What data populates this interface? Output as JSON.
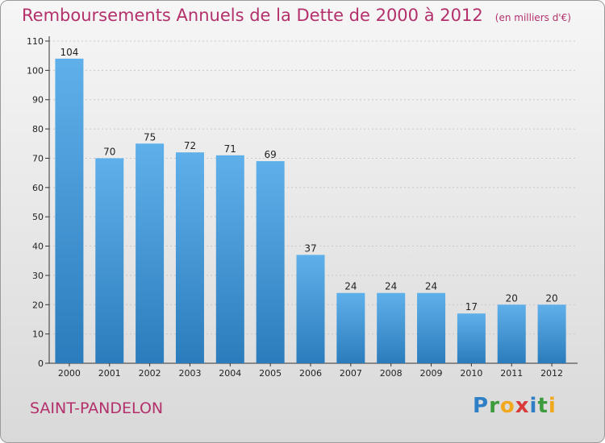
{
  "colors": {
    "title": "#b3306b",
    "bar_top": "#5fb0ea",
    "bar_bottom": "#2b7cbc"
  },
  "chart_data": {
    "type": "bar",
    "title": "Remboursements Annuels de la Dette de 2000 à 2012",
    "subtitle": "(en milliers d'€)",
    "categories": [
      "2000",
      "2001",
      "2002",
      "2003",
      "2004",
      "2005",
      "2006",
      "2007",
      "2008",
      "2009",
      "2010",
      "2011",
      "2012"
    ],
    "values": [
      104,
      70,
      75,
      72,
      71,
      69,
      37,
      24,
      24,
      24,
      17,
      20,
      20
    ],
    "yticks": [
      0,
      10,
      20,
      30,
      40,
      50,
      60,
      70,
      80,
      90,
      100,
      110
    ],
    "ylim": [
      0,
      110
    ],
    "xlabel": "",
    "ylabel": "",
    "grid": true
  },
  "footer": {
    "commune": "SAINT-PANDELON",
    "logo_letters": [
      {
        "ch": "P",
        "color": "#2f7fc6"
      },
      {
        "ch": "r",
        "color": "#3c9b3c"
      },
      {
        "ch": "o",
        "color": "#f2a81d"
      },
      {
        "ch": "x",
        "color": "#d93a3a"
      },
      {
        "ch": "i",
        "color": "#2f7fc6"
      },
      {
        "ch": "t",
        "color": "#3c9b3c"
      },
      {
        "ch": "i",
        "color": "#f2a81d"
      }
    ]
  }
}
